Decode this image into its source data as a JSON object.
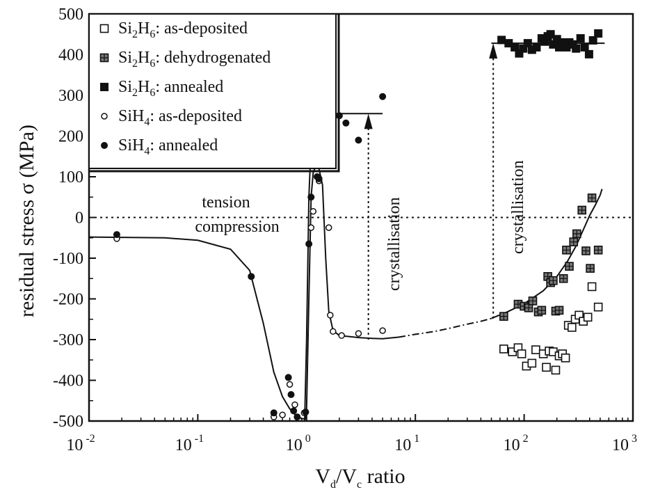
{
  "chart_data": {
    "type": "scatter",
    "xlabel": {
      "main": "V",
      "sub1": "d",
      "slash": "/V",
      "sub2": "c",
      "rest": " ratio"
    },
    "ylabel": "residual stress σ (MPa)",
    "xscale": "log",
    "xlim": [
      0.01,
      1000
    ],
    "ylim": [
      -500,
      500
    ],
    "x_ticks": [
      {
        "value": 0.01,
        "base": "10",
        "exp": "-2"
      },
      {
        "value": 0.1,
        "base": "10",
        "exp": "-1"
      },
      {
        "value": 1,
        "base": "10",
        "exp": "0"
      },
      {
        "value": 10,
        "base": "10",
        "exp": "1"
      },
      {
        "value": 100,
        "base": "10",
        "exp": "2"
      },
      {
        "value": 1000,
        "base": "10",
        "exp": "3"
      }
    ],
    "y_ticks": [
      {
        "value": 500,
        "label": "500"
      },
      {
        "value": 400,
        "label": "400"
      },
      {
        "value": 300,
        "label": "300"
      },
      {
        "value": 200,
        "label": "200"
      },
      {
        "value": 100,
        "label": "100"
      },
      {
        "value": 0,
        "label": "0"
      },
      {
        "value": -100,
        "label": "-100"
      },
      {
        "value": -200,
        "label": "-200"
      },
      {
        "value": -300,
        "label": "-300"
      },
      {
        "value": -400,
        "label": "-400"
      },
      {
        "value": -500,
        "label": "-500"
      }
    ],
    "legend_position": "top-left",
    "series": [
      {
        "name": "Si2H6: as-deposited",
        "legend": {
          "pre": "Si",
          "s1": "2",
          "mid": "H",
          "s2": "6",
          "post": ": as-deposited"
        },
        "marker": "open-square",
        "points": [
          [
            65,
            -323
          ],
          [
            78,
            -330
          ],
          [
            88,
            -320
          ],
          [
            95,
            -335
          ],
          [
            105,
            -365
          ],
          [
            118,
            -358
          ],
          [
            128,
            -325
          ],
          [
            150,
            -335
          ],
          [
            160,
            -368
          ],
          [
            170,
            -328
          ],
          [
            185,
            -330
          ],
          [
            195,
            -375
          ],
          [
            210,
            -340
          ],
          [
            225,
            -335
          ],
          [
            240,
            -345
          ],
          [
            255,
            -265
          ],
          [
            275,
            -270
          ],
          [
            295,
            -250
          ],
          [
            320,
            -240
          ],
          [
            350,
            -255
          ],
          [
            385,
            -245
          ],
          [
            420,
            -170
          ],
          [
            480,
            -220
          ]
        ]
      },
      {
        "name": "Si2H6: dehydrogenated",
        "legend": {
          "pre": "Si",
          "s1": "2",
          "mid": "H",
          "s2": "6",
          "post": ": dehydrogenated"
        },
        "marker": "grid-square",
        "points": [
          [
            65,
            -243
          ],
          [
            88,
            -213
          ],
          [
            100,
            -218
          ],
          [
            110,
            -222
          ],
          [
            120,
            -205
          ],
          [
            135,
            -232
          ],
          [
            145,
            -228
          ],
          [
            165,
            -145
          ],
          [
            175,
            -160
          ],
          [
            185,
            -155
          ],
          [
            195,
            -230
          ],
          [
            210,
            -228
          ],
          [
            230,
            -150
          ],
          [
            245,
            -80
          ],
          [
            260,
            -120
          ],
          [
            285,
            -60
          ],
          [
            305,
            -40
          ],
          [
            340,
            18
          ],
          [
            370,
            -82
          ],
          [
            405,
            -125
          ],
          [
            420,
            48
          ],
          [
            480,
            -80
          ]
        ]
      },
      {
        "name": "Si2H6: annealed",
        "legend": {
          "pre": "Si",
          "s1": "2",
          "mid": "H",
          "s2": "6",
          "post": ": annealed"
        },
        "marker": "filled-square",
        "points": [
          [
            62,
            436
          ],
          [
            72,
            428
          ],
          [
            82,
            418
          ],
          [
            90,
            403
          ],
          [
            98,
            415
          ],
          [
            108,
            428
          ],
          [
            118,
            412
          ],
          [
            130,
            418
          ],
          [
            145,
            440
          ],
          [
            155,
            432
          ],
          [
            165,
            445
          ],
          [
            175,
            450
          ],
          [
            185,
            425
          ],
          [
            200,
            438
          ],
          [
            210,
            418
          ],
          [
            225,
            430
          ],
          [
            245,
            418
          ],
          [
            260,
            430
          ],
          [
            280,
            425
          ],
          [
            300,
            415
          ],
          [
            330,
            440
          ],
          [
            360,
            418
          ],
          [
            395,
            401
          ],
          [
            430,
            435
          ],
          [
            480,
            452
          ]
        ]
      },
      {
        "name": "SiH4: as-deposited",
        "legend": {
          "pre": "SiH",
          "s1": "",
          "mid": "",
          "s2": "4",
          "post": ": as-deposited"
        },
        "marker": "open-circle",
        "points": [
          [
            0.018,
            -52
          ],
          [
            0.5,
            -490
          ],
          [
            0.6,
            -485
          ],
          [
            0.7,
            -410
          ],
          [
            0.78,
            -460
          ],
          [
            0.95,
            -480
          ],
          [
            1.1,
            -25
          ],
          [
            1.15,
            15
          ],
          [
            1.2,
            130
          ],
          [
            1.3,
            90
          ],
          [
            1.6,
            -25
          ],
          [
            1.65,
            -240
          ],
          [
            1.75,
            -280
          ],
          [
            2.1,
            -290
          ],
          [
            3.0,
            -285
          ],
          [
            5.0,
            -278
          ]
        ]
      },
      {
        "name": "SiH4: annealed",
        "legend": {
          "pre": "SiH",
          "s1": "",
          "mid": "",
          "s2": "4",
          "post": ": annealed"
        },
        "marker": "filled-circle",
        "points": [
          [
            0.018,
            -42
          ],
          [
            0.31,
            -145
          ],
          [
            0.5,
            -480
          ],
          [
            0.68,
            -393
          ],
          [
            0.72,
            -435
          ],
          [
            0.76,
            -475
          ],
          [
            0.82,
            -490
          ],
          [
            0.98,
            -478
          ],
          [
            1.05,
            -65
          ],
          [
            1.1,
            50
          ],
          [
            1.12,
            205
          ],
          [
            1.18,
            210
          ],
          [
            1.25,
            100
          ],
          [
            1.3,
            95
          ],
          [
            1.6,
            240
          ],
          [
            1.65,
            252
          ],
          [
            2.0,
            250
          ],
          [
            2.3,
            232
          ],
          [
            3.0,
            190
          ],
          [
            5.0,
            297
          ]
        ]
      }
    ],
    "fit_curves": [
      {
        "style": "solid",
        "points": [
          [
            0.01,
            -48
          ],
          [
            0.05,
            -50
          ],
          [
            0.1,
            -56
          ],
          [
            0.2,
            -78
          ],
          [
            0.3,
            -130
          ],
          [
            0.4,
            -260
          ],
          [
            0.5,
            -380
          ],
          [
            0.6,
            -440
          ],
          [
            0.7,
            -470
          ],
          [
            0.8,
            -487
          ],
          [
            0.9,
            -494
          ],
          [
            0.98,
            -495
          ],
          [
            1.0,
            -470
          ],
          [
            1.05,
            -200
          ],
          [
            1.1,
            50
          ],
          [
            1.15,
            110
          ],
          [
            1.2,
            124
          ],
          [
            1.3,
            120
          ],
          [
            1.4,
            80
          ],
          [
            1.5,
            -100
          ],
          [
            1.6,
            -230
          ],
          [
            1.75,
            -278
          ],
          [
            2.0,
            -290
          ],
          [
            3.0,
            -295
          ],
          [
            4.0,
            -297
          ],
          [
            5.0,
            -298
          ],
          [
            7.0,
            -294
          ]
        ]
      },
      {
        "style": "dash-dot",
        "points": [
          [
            7.0,
            -294
          ],
          [
            10,
            -287
          ],
          [
            15,
            -280
          ],
          [
            20,
            -273
          ],
          [
            30,
            -262
          ],
          [
            40,
            -255
          ],
          [
            50,
            -248
          ]
        ]
      },
      {
        "style": "solid",
        "points": [
          [
            50,
            -248
          ],
          [
            70,
            -232
          ],
          [
            100,
            -212
          ],
          [
            150,
            -180
          ],
          [
            200,
            -145
          ],
          [
            250,
            -108
          ],
          [
            300,
            -70
          ],
          [
            350,
            -30
          ],
          [
            400,
            5
          ],
          [
            450,
            30
          ],
          [
            500,
            55
          ],
          [
            520,
            70
          ]
        ]
      },
      {
        "style": "solid",
        "points": [
          [
            0.96,
            -500
          ],
          [
            1.0,
            -300
          ],
          [
            1.05,
            50
          ],
          [
            1.1,
            180
          ],
          [
            1.2,
            240
          ],
          [
            1.35,
            255
          ],
          [
            5.0,
            255
          ]
        ]
      }
    ],
    "plateaus": [
      {
        "x_start": 50,
        "x_end": 550,
        "y": 428
      }
    ],
    "dashed_arrows": [
      {
        "x": 3.7,
        "y_start": -300,
        "y_end": 255
      },
      {
        "x": 52,
        "y_start": -248,
        "y_end": 428
      }
    ],
    "zero_line": {
      "y": 0,
      "style": "dotted"
    },
    "annotations": {
      "tension": "tension",
      "compression": "compression",
      "crystallisation_1": "crystallisation",
      "crystallisation_2": "crystallisation"
    }
  }
}
